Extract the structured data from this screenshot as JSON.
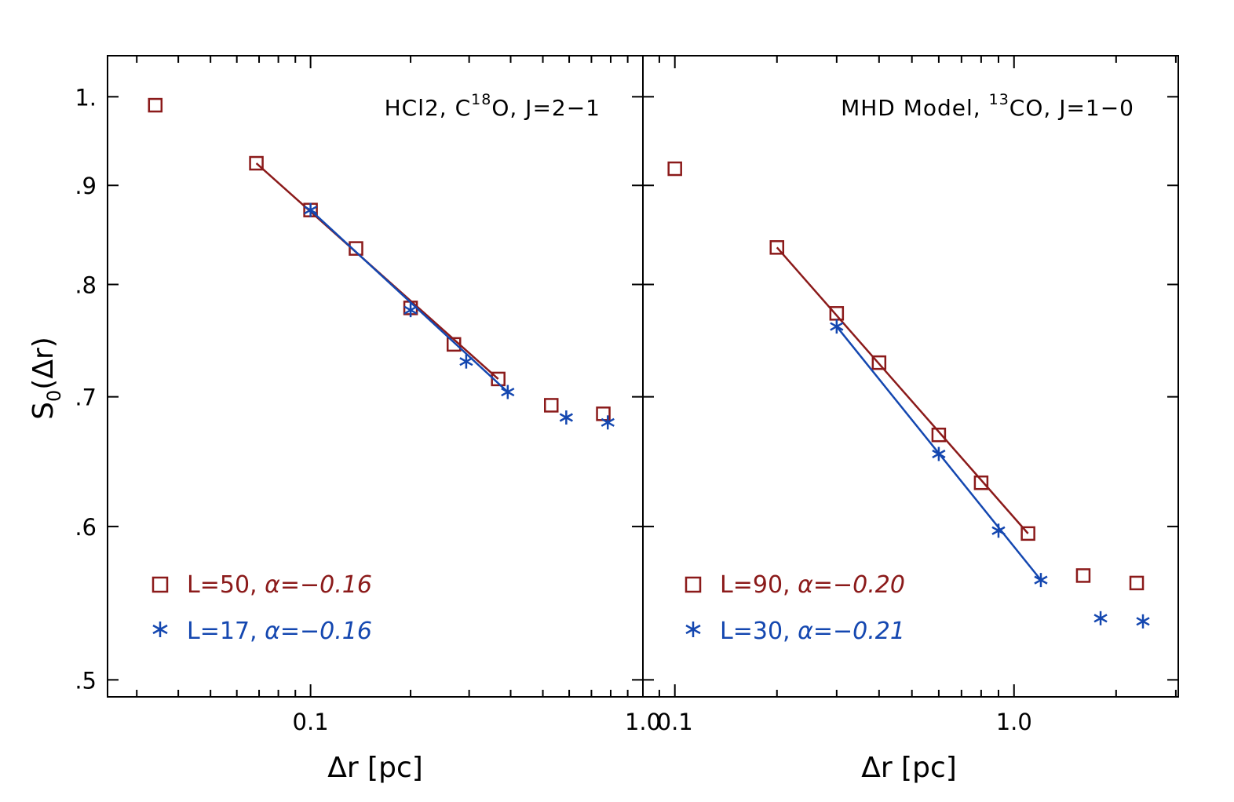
{
  "colors": {
    "red": "#8B1A1A",
    "blue": "#1447B0",
    "axis": "#000000"
  },
  "chart_data": [
    {
      "type": "scatter",
      "title_parts": [
        "HCl2, C",
        "18",
        "O, J=2−1"
      ],
      "xscale": "log",
      "yscale": "log",
      "xlim": [
        0.0245,
        1.0
      ],
      "ylim": [
        0.49,
        1.05
      ],
      "xticks": [
        {
          "v": 0.1,
          "label": "0.1"
        },
        {
          "v": 1.0,
          "label": "1.0"
        }
      ],
      "yticks": [
        {
          "v": 1.0,
          "label": "1."
        },
        {
          "v": 0.9,
          "label": ".9"
        },
        {
          "v": 0.8,
          "label": ".8"
        },
        {
          "v": 0.7,
          "label": ".7"
        },
        {
          "v": 0.6,
          "label": ".6"
        },
        {
          "v": 0.5,
          "label": ".5"
        }
      ],
      "xlabel": "Δr [pc]",
      "ylabel_parts": [
        "S",
        "0",
        "(Δr)"
      ],
      "series": [
        {
          "name": "L=50",
          "legend_label": "L=50, ",
          "legend_alpha": "α=−0.16",
          "marker": "square",
          "color": "red",
          "x": [
            0.0341,
            0.0687,
            0.1,
            0.137,
            0.2,
            0.27,
            0.367,
            0.53,
            0.76
          ],
          "y": [
            0.99,
            0.924,
            0.874,
            0.835,
            0.778,
            0.745,
            0.715,
            0.693,
            0.686
          ],
          "fit": {
            "x": [
              0.0687,
              0.367
            ],
            "y": [
              0.924,
              0.715
            ]
          }
        },
        {
          "name": "L=17",
          "legend_label": "L=17, ",
          "legend_alpha": "α=−0.16",
          "marker": "asterisk",
          "color": "blue",
          "x": [
            0.1,
            0.2,
            0.294,
            0.392,
            0.588,
            0.784
          ],
          "y": [
            0.874,
            0.776,
            0.73,
            0.704,
            0.683,
            0.679
          ],
          "fit": {
            "x": [
              0.1,
              0.392
            ],
            "y": [
              0.874,
              0.704
            ]
          }
        }
      ]
    },
    {
      "type": "scatter",
      "title_parts": [
        "MHD Model, ",
        "13",
        "CO, J=1−0"
      ],
      "xscale": "log",
      "yscale": "log",
      "xlim": [
        0.0805,
        3.05
      ],
      "ylim": [
        0.49,
        1.05
      ],
      "xticks": [
        {
          "v": 0.1,
          "label": "0.1"
        },
        {
          "v": 1.0,
          "label": "1.0"
        }
      ],
      "yticks": [
        {
          "v": 1.0,
          "label": ""
        },
        {
          "v": 0.9,
          "label": ""
        },
        {
          "v": 0.8,
          "label": ""
        },
        {
          "v": 0.7,
          "label": ""
        },
        {
          "v": 0.6,
          "label": ""
        },
        {
          "v": 0.5,
          "label": ""
        }
      ],
      "xlabel": "Δr [pc]",
      "series": [
        {
          "name": "L=90",
          "legend_label": "L=90, ",
          "legend_alpha": "α=−0.20",
          "marker": "square",
          "color": "red",
          "x": [
            0.1,
            0.2,
            0.3,
            0.4,
            0.6,
            0.8,
            1.1,
            1.6,
            2.3
          ],
          "y": [
            0.918,
            0.836,
            0.773,
            0.729,
            0.669,
            0.632,
            0.595,
            0.566,
            0.561
          ],
          "fit": {
            "x": [
              0.2,
              1.1
            ],
            "y": [
              0.836,
              0.595
            ]
          }
        },
        {
          "name": "L=30",
          "legend_label": "L=30, ",
          "legend_alpha": "α=−0.21",
          "marker": "asterisk",
          "color": "blue",
          "x": [
            0.3,
            0.6,
            0.9,
            1.2,
            1.8,
            2.4
          ],
          "y": [
            0.761,
            0.654,
            0.597,
            0.563,
            0.538,
            0.536
          ],
          "fit": {
            "x": [
              0.3,
              1.2
            ],
            "y": [
              0.761,
              0.563
            ]
          }
        }
      ]
    }
  ]
}
